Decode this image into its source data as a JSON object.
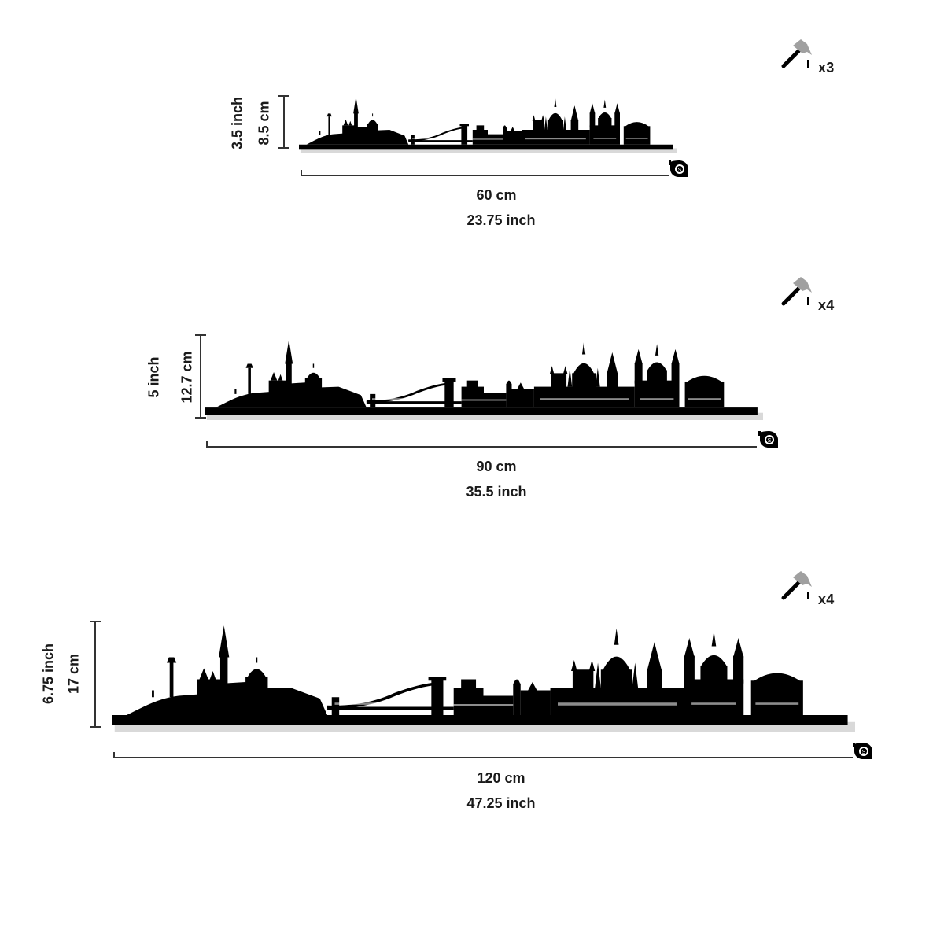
{
  "items": [
    {
      "height_inch": "3.5 inch",
      "height_cm": "8.5 cm",
      "width_cm": "60 cm",
      "width_inch": "23.75 inch",
      "hangers": "x3"
    },
    {
      "height_inch": "5 inch",
      "height_cm": "12.7 cm",
      "width_cm": "90 cm",
      "width_inch": "35.5 inch",
      "hangers": "x4"
    },
    {
      "height_inch": "6.75 inch",
      "height_cm": "17 cm",
      "width_cm": "120 cm",
      "width_inch": "47.25 inch",
      "hangers": "x4"
    }
  ],
  "icons": {
    "hanger": "hammer-icon",
    "tape": "tape-measure-icon"
  },
  "colors": {
    "silhouette": "#000000",
    "hammer_head": "#a0a0a0",
    "text": "#1a1a1a"
  }
}
